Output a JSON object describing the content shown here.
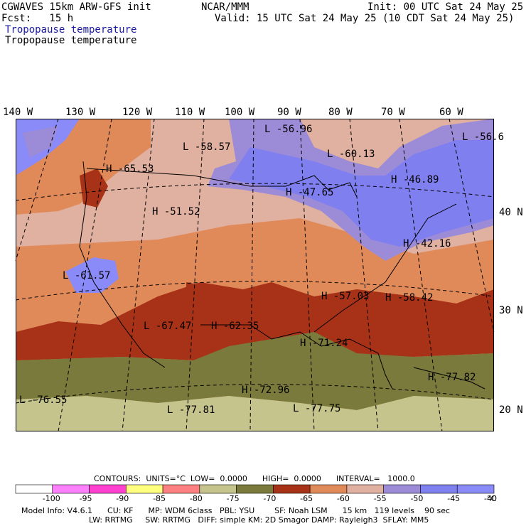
{
  "header": {
    "model": "CGWAVES 15km ARW-GFS init",
    "forecast": "Fcst:   15 h",
    "org": "NCAR/MMM",
    "init": "Init: 00 UTC Sat 24 May 25",
    "valid": "Valid: 15 UTC Sat 24 May 25 (10 CDT Sat 24 May 25)",
    "field1": "Tropopause temperature",
    "field2": "Tropopause temperature"
  },
  "longitudes": [
    "140 W",
    "130 W",
    "120 W",
    "110 W",
    "100 W",
    "90 W",
    "80 W",
    "70 W",
    "60 W"
  ],
  "latitudes": [
    "40 N",
    "30 N",
    "20 N"
  ],
  "map_labels": [
    {
      "type": "L",
      "value": "-56.96"
    },
    {
      "type": "L",
      "value": "-58.57"
    },
    {
      "type": "L",
      "value": "-60.13"
    },
    {
      "type": "L",
      "value": "-56.6"
    },
    {
      "type": "H",
      "value": "-65.53"
    },
    {
      "type": "H",
      "value": "-46.89"
    },
    {
      "type": "H",
      "value": "-47.65"
    },
    {
      "type": "H",
      "value": "-51.52"
    },
    {
      "type": "H",
      "value": "-42.16"
    },
    {
      "type": "L",
      "value": "-61.57"
    },
    {
      "type": "H",
      "value": "-57.03"
    },
    {
      "type": "H",
      "value": "-58.42"
    },
    {
      "type": "L",
      "value": "-67.47"
    },
    {
      "type": "H",
      "value": "-62.35"
    },
    {
      "type": "H",
      "value": "-71.24"
    },
    {
      "type": "H",
      "value": "-77.82"
    },
    {
      "type": "H",
      "value": "-72.96"
    },
    {
      "type": "L",
      "value": "-76.55"
    },
    {
      "type": "L",
      "value": "-77.81"
    },
    {
      "type": "L",
      "value": "-77.75"
    }
  ],
  "contours": {
    "line": "CONTOURS:  UNITS=°C  LOW=  0.0000      HIGH=  0.0000      INTERVAL=   1000.0"
  },
  "legend": {
    "ticks": [
      "-100",
      "-95",
      "-90",
      "-85",
      "-80",
      "-75",
      "-70",
      "-65",
      "-60",
      "-55",
      "-50",
      "-45",
      "-40"
    ],
    "unit": "°C",
    "colors": [
      "#ffffff",
      "#ff80ff",
      "#ff40d0",
      "#ffff80",
      "#ff8080",
      "#c4c48c",
      "#7a7a3c",
      "#a83218",
      "#e08a5a",
      "#e0b0a0",
      "#9c8cd8",
      "#7f7ff0",
      "#8a8af8"
    ]
  },
  "footer": {
    "line1": "Model Info: V4.6.1      CU: KF      MP: WDM 6class   PBL: YSU        SF: Noah LSM      15 km   119 levels    90 sec",
    "line2": "LW: RRTMG     SW: RRTMG   DIFF: simple KM: 2D Smagor DAMP: Rayleigh3  SFLAY: MM5"
  }
}
